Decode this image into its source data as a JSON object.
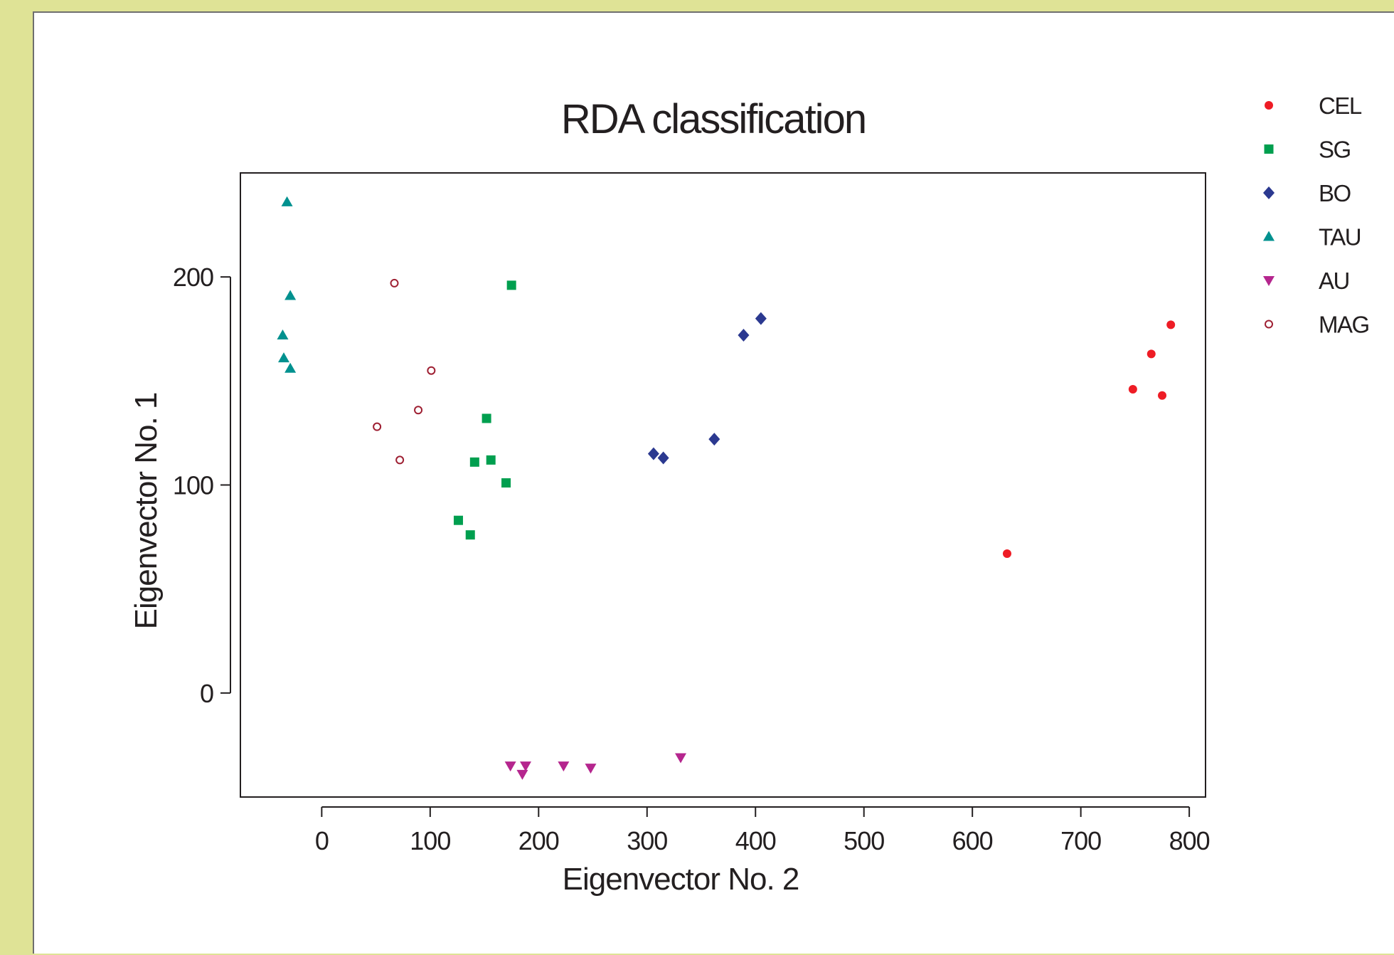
{
  "chart_data": {
    "type": "scatter",
    "title": "RDA classification",
    "xlabel": "Eigenvector No. 2",
    "ylabel": "Eigenvector No. 1",
    "xlim": [
      -75,
      815
    ],
    "ylim": [
      -50,
      250
    ],
    "xticks": [
      0,
      100,
      200,
      300,
      400,
      500,
      600,
      700,
      800
    ],
    "yticks": [
      0,
      100,
      200
    ],
    "grid": false,
    "legend_position": "right",
    "series": [
      {
        "name": "CEL",
        "marker": "dot",
        "color": "#ee1c25",
        "points": [
          [
            632,
            67
          ],
          [
            748,
            146
          ],
          [
            765,
            163
          ],
          [
            775,
            143
          ],
          [
            783,
            177
          ]
        ]
      },
      {
        "name": "SG",
        "marker": "square",
        "color": "#009f4f",
        "points": [
          [
            175,
            196
          ],
          [
            152,
            132
          ],
          [
            141,
            111
          ],
          [
            156,
            112
          ],
          [
            170,
            101
          ],
          [
            126,
            83
          ],
          [
            137,
            76
          ]
        ]
      },
      {
        "name": "BO",
        "marker": "diamond",
        "color": "#2b3990",
        "points": [
          [
            405,
            180
          ],
          [
            389,
            172
          ],
          [
            362,
            122
          ],
          [
            306,
            115
          ],
          [
            315,
            113
          ]
        ]
      },
      {
        "name": "TAU",
        "marker": "triangle-up",
        "color": "#00918f",
        "points": [
          [
            -32,
            236
          ],
          [
            -29,
            191
          ],
          [
            -36,
            172
          ],
          [
            -35,
            161
          ],
          [
            -29,
            156
          ]
        ]
      },
      {
        "name": "AU",
        "marker": "triangle-down",
        "color": "#b5268e",
        "points": [
          [
            174,
            -35
          ],
          [
            188,
            -35
          ],
          [
            185,
            -39
          ],
          [
            223,
            -35
          ],
          [
            248,
            -36
          ],
          [
            331,
            -31
          ]
        ]
      },
      {
        "name": "MAG",
        "marker": "circle-open",
        "color": "#9e1f32",
        "points": [
          [
            67,
            197
          ],
          [
            101,
            155
          ],
          [
            89,
            136
          ],
          [
            51,
            128
          ],
          [
            72,
            112
          ]
        ]
      }
    ]
  }
}
